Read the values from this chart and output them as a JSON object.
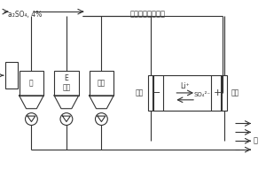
{
  "bg_color": "#f5f5f5",
  "line_color": "#333333",
  "box_fill": "#e8e8e8",
  "title_top_left": "a₂SO₄, 4%",
  "title_top_center": "水溶液，包含离子",
  "tank_labels": [
    "笔",
    "E\n冲洗",
    "稀液"
  ],
  "cathode_label": "阴极",
  "anode_label": "阳极",
  "cell_ion1": "Li⁺",
  "cell_ion2": "SO₄²⁻",
  "water_label": "水"
}
